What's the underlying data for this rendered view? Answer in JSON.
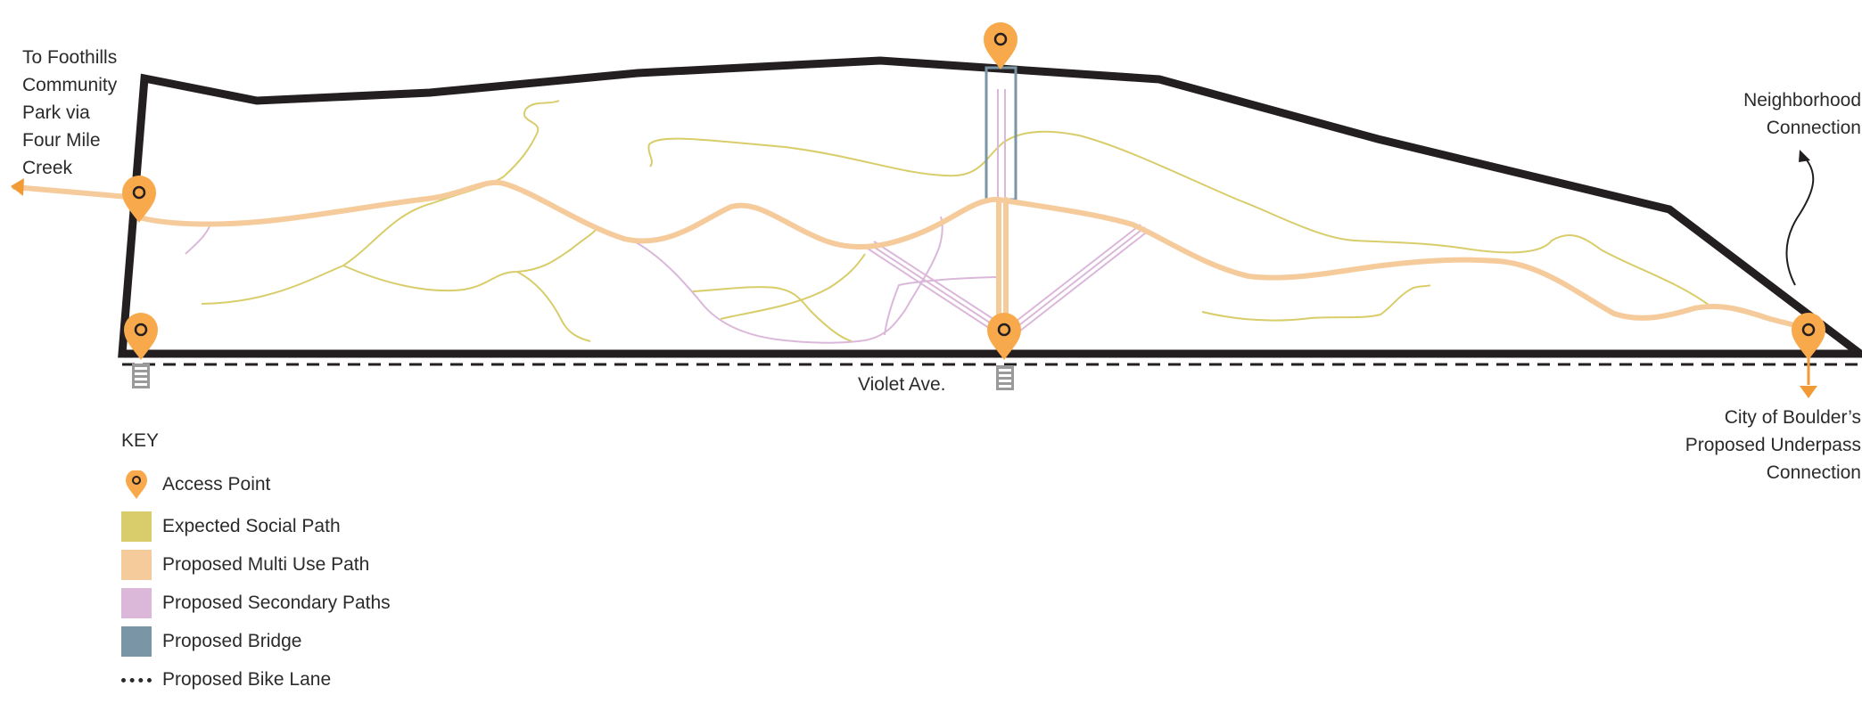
{
  "labels": {
    "foothills": [
      "To Foothills",
      "Community",
      "Park via",
      "Four Mile",
      "Creek"
    ],
    "neighborhood": [
      "Neighborhood",
      "Connection"
    ],
    "street": "Violet Ave.",
    "underpass": [
      "City of Boulder’s",
      "Proposed Underpass",
      "Connection"
    ]
  },
  "key": {
    "title": "KEY",
    "items": [
      {
        "label": "Access Point",
        "kind": "pin"
      },
      {
        "label": "Expected Social Path",
        "kind": "swatch",
        "color": "#d8cd6a"
      },
      {
        "label": "Proposed Multi Use Path",
        "kind": "swatch",
        "color": "#f6cb9b"
      },
      {
        "label": "Proposed Secondary Paths",
        "kind": "swatch",
        "color": "#dbb8da"
      },
      {
        "label": "Proposed Bridge",
        "kind": "swatch",
        "color": "#7a95a5"
      },
      {
        "label": "Proposed Bike Lane",
        "kind": "dash"
      }
    ]
  },
  "colors": {
    "boundary": "#231f20",
    "social_path": "#d8cd6a",
    "multi_use_path": "#f6cb9b",
    "secondary_path": "#dbb8da",
    "bridge": "#7a95a5",
    "access_pin": "#f7a94b",
    "arrow_orange": "#f29a33"
  }
}
